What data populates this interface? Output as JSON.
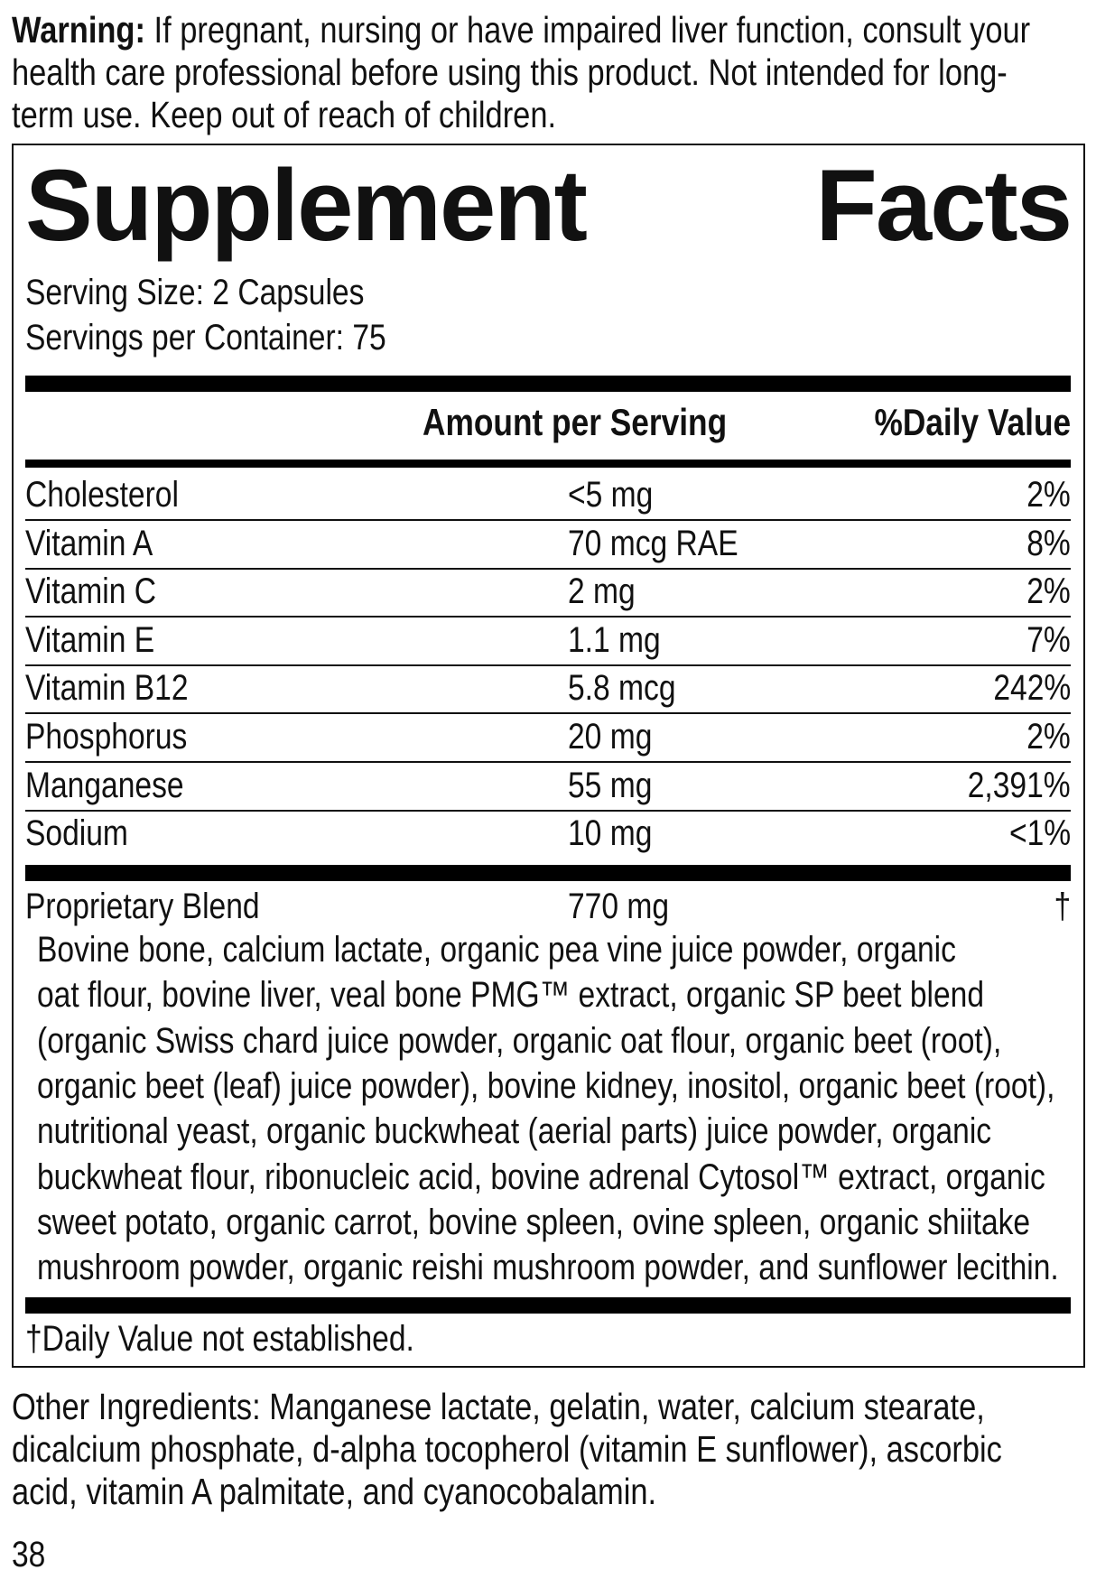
{
  "warning": {
    "label": "Warning:",
    "lines": [
      " If pregnant, nursing or have impaired liver function, consult your",
      "health care professional before using this product. Not intended for long-",
      "term use. Keep out of reach of children."
    ]
  },
  "facts": {
    "title_word1": "Supplement",
    "title_word2": "Facts",
    "serving_size": "Serving Size: 2 Capsules",
    "servings_per_container": "Servings per Container: 75",
    "header_amount": "Amount per Serving",
    "header_dv": "%Daily Value",
    "rows": [
      {
        "name": "Cholesterol",
        "amount": "<5 mg",
        "dv": "2%"
      },
      {
        "name": "Vitamin A",
        "amount": "70 mcg RAE",
        "dv": "8%"
      },
      {
        "name": "Vitamin C",
        "amount": "2 mg",
        "dv": "2%"
      },
      {
        "name": "Vitamin E",
        "amount": "1.1 mg",
        "dv": "7%"
      },
      {
        "name": "Vitamin B12",
        "amount": "5.8 mcg",
        "dv": "242%"
      },
      {
        "name": "Phosphorus",
        "amount": "20 mg",
        "dv": "2%"
      },
      {
        "name": "Manganese",
        "amount": "55 mg",
        "dv": "2,391%"
      },
      {
        "name": "Sodium",
        "amount": "10 mg",
        "dv": "<1%"
      }
    ],
    "blend": {
      "name": "Proprietary Blend",
      "amount": "770 mg",
      "dv": "†",
      "lines": [
        "Bovine bone, calcium lactate, organic pea vine juice powder, organic",
        "oat flour, bovine liver, veal bone PMG™ extract, organic SP beet blend",
        "(organic Swiss chard juice powder, organic oat flour, organic beet (root),",
        "organic beet (leaf) juice powder), bovine kidney, inositol, organic beet (root),",
        "nutritional yeast, organic buckwheat (aerial parts) juice powder, organic",
        "buckwheat flour, ribonucleic acid, bovine adrenal Cytosol™ extract, organic",
        "sweet potato, organic carrot, bovine spleen, ovine spleen, organic shiitake",
        "mushroom powder, organic reishi mushroom powder, and sunflower lecithin."
      ]
    },
    "footnote": "†Daily Value not established."
  },
  "other_ingredients": {
    "lines": [
      "Other Ingredients: Manganese lactate, gelatin, water, calcium stearate,",
      "dicalcium phosphate, d-alpha tocopherol (vitamin E sunflower), ascorbic",
      "acid, vitamin A palmitate, and cyanocobalamin."
    ]
  },
  "page_number": "38"
}
